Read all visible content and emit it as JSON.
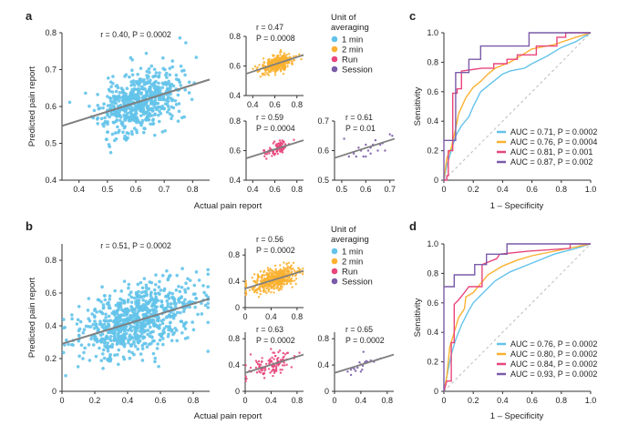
{
  "colors": {
    "1 min": "#63c3ea",
    "2 min": "#fbb131",
    "Run": "#e8467c",
    "Session": "#7a5ba8",
    "fit": "#7f7f7f",
    "chance": "#bbbbbb"
  },
  "labels": {
    "panel_a": "a",
    "panel_b": "b",
    "panel_c": "c",
    "panel_d": "d",
    "ylabel_scatter": "Predicted pain report",
    "xlabel_scatter": "Actual pain report",
    "ylabel_roc": "Sensitivity",
    "xlabel_roc": "1 – Specificity"
  },
  "legend": {
    "title_line1": "Unit of",
    "title_line2": "averaging",
    "items": [
      "1 min",
      "2 min",
      "Run",
      "Session"
    ]
  },
  "chart_data": [
    {
      "id": "a_main",
      "type": "scatter",
      "series": "1 min",
      "annotation": "r = 0.40, P = 0.0002",
      "r": 0.4,
      "p": 0.0002,
      "xlim": [
        0.34,
        0.86
      ],
      "ylim": [
        0.4,
        0.8
      ],
      "xticks": [
        0.4,
        0.5,
        0.6,
        0.7,
        0.8
      ],
      "yticks": [
        0.4,
        0.5,
        0.6,
        0.7,
        0.8
      ],
      "fit": {
        "slope": 0.242,
        "intercept": 0.465
      }
    },
    {
      "id": "a_2min",
      "type": "scatter",
      "series": "2 min",
      "annotation_r": "r = 0.47",
      "annotation_p": "P = 0.0008",
      "r": 0.47,
      "p": 0.0008,
      "xlim": [
        0.34,
        0.86
      ],
      "ylim": [
        0.4,
        0.8
      ],
      "xticks": [
        0.4,
        0.6,
        0.8
      ],
      "yticks": [
        0.4,
        0.6,
        0.8
      ],
      "fit": {
        "slope": 0.245,
        "intercept": 0.464
      }
    },
    {
      "id": "a_run",
      "type": "scatter",
      "series": "Run",
      "annotation_r": "r = 0.59",
      "annotation_p": "P = 0.0004",
      "r": 0.59,
      "p": 0.0004,
      "xlim": [
        0.34,
        0.86
      ],
      "ylim": [
        0.4,
        0.8
      ],
      "xticks": [
        0.4,
        0.6,
        0.8
      ],
      "yticks": [
        0.4,
        0.6,
        0.8
      ],
      "fit": {
        "slope": 0.235,
        "intercept": 0.468
      }
    },
    {
      "id": "a_session",
      "type": "scatter",
      "series": "Session",
      "annotation_r": "r = 0.61",
      "annotation_p": "P = 0.01",
      "r": 0.61,
      "p": 0.01,
      "xlim": [
        0.47,
        0.72
      ],
      "ylim": [
        0.5,
        0.7
      ],
      "xticks": [
        0.5,
        0.6,
        0.7
      ],
      "yticks": [
        0.5,
        0.6,
        0.7
      ],
      "fit": {
        "slope": 0.26,
        "intercept": 0.453
      },
      "points": [
        [
          0.51,
          0.64
        ],
        [
          0.53,
          0.58
        ],
        [
          0.55,
          0.59
        ],
        [
          0.56,
          0.58
        ],
        [
          0.57,
          0.61
        ],
        [
          0.58,
          0.6
        ],
        [
          0.59,
          0.58
        ],
        [
          0.6,
          0.58
        ],
        [
          0.6,
          0.62
        ],
        [
          0.61,
          0.6
        ],
        [
          0.62,
          0.59
        ],
        [
          0.62,
          0.61
        ],
        [
          0.63,
          0.62
        ],
        [
          0.64,
          0.635
        ],
        [
          0.65,
          0.6
        ],
        [
          0.66,
          0.62
        ],
        [
          0.67,
          0.625
        ],
        [
          0.68,
          0.6
        ],
        [
          0.7,
          0.655
        ],
        [
          0.71,
          0.65
        ]
      ]
    },
    {
      "id": "b_main",
      "type": "scatter",
      "series": "1 min",
      "annotation": "r = 0.51, P = 0.0002",
      "r": 0.51,
      "p": 0.0002,
      "xlim": [
        0,
        0.9
      ],
      "ylim": [
        0,
        0.9
      ],
      "xticks": [
        0,
        0.2,
        0.4,
        0.6,
        0.8
      ],
      "yticks": [
        0,
        0.2,
        0.4,
        0.6,
        0.8
      ],
      "fit": {
        "slope": 0.306,
        "intercept": 0.29
      }
    },
    {
      "id": "b_2min",
      "type": "scatter",
      "series": "2 min",
      "annotation_r": "r = 0.56",
      "annotation_p": "P = 0.0002",
      "r": 0.56,
      "p": 0.0002,
      "xlim": [
        0,
        0.9
      ],
      "ylim": [
        0,
        0.9
      ],
      "xticks": [
        0,
        0.4,
        0.8
      ],
      "yticks": [
        0,
        0.4,
        0.8
      ],
      "fit": {
        "slope": 0.3,
        "intercept": 0.29
      }
    },
    {
      "id": "b_run",
      "type": "scatter",
      "series": "Run",
      "annotation_r": "r = 0.63",
      "annotation_p": "P = 0.0002",
      "r": 0.63,
      "p": 0.0002,
      "xlim": [
        0,
        0.9
      ],
      "ylim": [
        0,
        0.9
      ],
      "xticks": [
        0,
        0.4,
        0.8
      ],
      "yticks": [
        0,
        0.4,
        0.8
      ],
      "fit": {
        "slope": 0.31,
        "intercept": 0.28
      }
    },
    {
      "id": "b_session",
      "type": "scatter",
      "series": "Session",
      "annotation_r": "r = 0.65",
      "annotation_p": "P = 0.0002",
      "r": 0.65,
      "p": 0.0002,
      "xlim": [
        0,
        0.9
      ],
      "ylim": [
        0,
        0.9
      ],
      "xticks": [
        0,
        0.4,
        0.8
      ],
      "yticks": [
        0,
        0.4,
        0.8
      ],
      "fit": {
        "slope": 0.31,
        "intercept": 0.28
      },
      "points": [
        [
          0.2,
          0.3
        ],
        [
          0.25,
          0.33
        ],
        [
          0.28,
          0.36
        ],
        [
          0.3,
          0.34
        ],
        [
          0.32,
          0.31
        ],
        [
          0.35,
          0.36
        ],
        [
          0.38,
          0.44
        ],
        [
          0.4,
          0.41
        ],
        [
          0.42,
          0.33
        ],
        [
          0.43,
          0.39
        ],
        [
          0.44,
          0.6
        ],
        [
          0.46,
          0.44
        ],
        [
          0.48,
          0.46
        ],
        [
          0.5,
          0.45
        ],
        [
          0.55,
          0.47
        ],
        [
          0.6,
          0.45
        ],
        [
          0.65,
          0.48
        ],
        [
          0.7,
          0.5
        ],
        [
          0.25,
          0.25
        ],
        [
          0.4,
          0.3
        ]
      ]
    },
    {
      "id": "c_roc",
      "type": "line",
      "xlabel": "1 – Specificity",
      "ylabel": "Sensitivity",
      "xlim": [
        0,
        1
      ],
      "ylim": [
        0,
        1
      ],
      "xticks": [
        "0",
        "0.2",
        "0.4",
        "0.6",
        "0.8",
        "1.0"
      ],
      "yticks": [
        "0",
        "0.2",
        "0.4",
        "0.6",
        "0.8",
        "1.0"
      ],
      "legend_position": "bottom-right",
      "series": [
        {
          "name": "AUC = 0.71, P = 0.0002",
          "unit": "1 min",
          "points": [
            [
              0,
              0
            ],
            [
              0.02,
              0.1
            ],
            [
              0.05,
              0.2
            ],
            [
              0.08,
              0.3
            ],
            [
              0.12,
              0.37
            ],
            [
              0.17,
              0.43
            ],
            [
              0.2,
              0.5
            ],
            [
              0.25,
              0.6
            ],
            [
              0.3,
              0.64
            ],
            [
              0.35,
              0.68
            ],
            [
              0.4,
              0.72
            ],
            [
              0.45,
              0.74
            ],
            [
              0.55,
              0.76
            ],
            [
              0.6,
              0.79
            ],
            [
              0.7,
              0.84
            ],
            [
              0.8,
              0.9
            ],
            [
              0.9,
              0.94
            ],
            [
              1,
              1
            ]
          ]
        },
        {
          "name": "AUC = 0.76, P = 0.0004",
          "unit": "2 min",
          "points": [
            [
              0,
              0
            ],
            [
              0.02,
              0.15
            ],
            [
              0.05,
              0.22
            ],
            [
              0.08,
              0.35
            ],
            [
              0.1,
              0.45
            ],
            [
              0.15,
              0.56
            ],
            [
              0.2,
              0.63
            ],
            [
              0.25,
              0.67
            ],
            [
              0.3,
              0.72
            ],
            [
              0.35,
              0.76
            ],
            [
              0.45,
              0.8
            ],
            [
              0.55,
              0.86
            ],
            [
              0.6,
              0.89
            ],
            [
              0.75,
              0.92
            ],
            [
              0.9,
              0.97
            ],
            [
              1,
              1
            ]
          ]
        },
        {
          "name": "AUC = 0.81, P = 0.001",
          "unit": "Run",
          "points": [
            [
              0,
              0
            ],
            [
              0.02,
              0
            ],
            [
              0.02,
              0.03
            ],
            [
              0.03,
              0.03
            ],
            [
              0.03,
              0.2
            ],
            [
              0.06,
              0.2
            ],
            [
              0.06,
              0.59
            ],
            [
              0.09,
              0.59
            ],
            [
              0.09,
              0.62
            ],
            [
              0.12,
              0.62
            ],
            [
              0.12,
              0.74
            ],
            [
              0.26,
              0.76
            ],
            [
              0.34,
              0.76
            ],
            [
              0.34,
              0.79
            ],
            [
              0.43,
              0.79
            ],
            [
              0.43,
              0.82
            ],
            [
              0.5,
              0.82
            ],
            [
              0.5,
              0.85
            ],
            [
              0.63,
              0.85
            ],
            [
              0.63,
              0.91
            ],
            [
              0.77,
              0.91
            ],
            [
              0.77,
              0.97
            ],
            [
              0.83,
              0.97
            ],
            [
              0.83,
              1
            ],
            [
              1,
              1
            ]
          ]
        },
        {
          "name": "AUC = 0.87, P = 0.002",
          "unit": "Session",
          "points": [
            [
              0,
              0
            ],
            [
              0,
              0.27
            ],
            [
              0.08,
              0.27
            ],
            [
              0.08,
              0.73
            ],
            [
              0.17,
              0.73
            ],
            [
              0.17,
              0.82
            ],
            [
              0.25,
              0.82
            ],
            [
              0.25,
              0.91
            ],
            [
              0.58,
              0.91
            ],
            [
              0.58,
              1
            ],
            [
              1,
              1
            ]
          ]
        }
      ]
    },
    {
      "id": "d_roc",
      "type": "line",
      "xlabel": "1 – Specificity",
      "ylabel": "Sensitivity",
      "xlim": [
        0,
        1
      ],
      "ylim": [
        0,
        1
      ],
      "xticks": [
        "0",
        "0.2",
        "0.4",
        "0.6",
        "0.8",
        "1.0"
      ],
      "yticks": [
        "0",
        "0.2",
        "0.4",
        "0.6",
        "0.8",
        "1.0"
      ],
      "legend_position": "bottom-right",
      "series": [
        {
          "name": "AUC = 0.76, P = 0.0002",
          "unit": "1 min",
          "points": [
            [
              0,
              0
            ],
            [
              0.02,
              0.1
            ],
            [
              0.05,
              0.25
            ],
            [
              0.08,
              0.35
            ],
            [
              0.12,
              0.45
            ],
            [
              0.17,
              0.55
            ],
            [
              0.2,
              0.6
            ],
            [
              0.28,
              0.68
            ],
            [
              0.35,
              0.75
            ],
            [
              0.45,
              0.81
            ],
            [
              0.6,
              0.87
            ],
            [
              0.75,
              0.93
            ],
            [
              0.9,
              0.97
            ],
            [
              1,
              1
            ]
          ]
        },
        {
          "name": "AUC = 0.80, P = 0.0002",
          "unit": "2 min",
          "points": [
            [
              0,
              0
            ],
            [
              0.02,
              0.1
            ],
            [
              0.04,
              0.3
            ],
            [
              0.07,
              0.4
            ],
            [
              0.1,
              0.5
            ],
            [
              0.14,
              0.56
            ],
            [
              0.15,
              0.64
            ],
            [
              0.2,
              0.67
            ],
            [
              0.25,
              0.73
            ],
            [
              0.3,
              0.79
            ],
            [
              0.4,
              0.85
            ],
            [
              0.5,
              0.89
            ],
            [
              0.6,
              0.92
            ],
            [
              0.8,
              0.96
            ],
            [
              1,
              1
            ]
          ]
        },
        {
          "name": "AUC = 0.84, P = 0.0002",
          "unit": "Run",
          "points": [
            [
              0,
              0
            ],
            [
              0.02,
              0.07
            ],
            [
              0.05,
              0.07
            ],
            [
              0.05,
              0.33
            ],
            [
              0.07,
              0.33
            ],
            [
              0.07,
              0.59
            ],
            [
              0.1,
              0.62
            ],
            [
              0.14,
              0.67
            ],
            [
              0.17,
              0.71
            ],
            [
              0.26,
              0.71
            ],
            [
              0.26,
              0.86
            ],
            [
              0.36,
              0.9
            ],
            [
              0.38,
              0.93
            ],
            [
              0.57,
              0.95
            ],
            [
              0.86,
              0.97
            ],
            [
              0.86,
              1
            ],
            [
              1,
              1
            ]
          ]
        },
        {
          "name": "AUC = 0.93, P = 0.0002",
          "unit": "Session",
          "points": [
            [
              0,
              0
            ],
            [
              0,
              0.71
            ],
            [
              0.07,
              0.71
            ],
            [
              0.07,
              0.79
            ],
            [
              0.21,
              0.79
            ],
            [
              0.21,
              0.86
            ],
            [
              0.29,
              0.86
            ],
            [
              0.29,
              0.93
            ],
            [
              0.43,
              0.93
            ],
            [
              0.43,
              1
            ],
            [
              1,
              1
            ]
          ]
        }
      ]
    }
  ]
}
